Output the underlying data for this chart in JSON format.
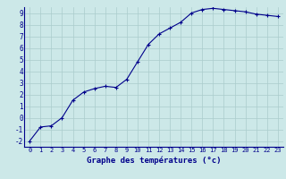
{
  "x": [
    0,
    1,
    2,
    3,
    4,
    5,
    6,
    7,
    8,
    9,
    10,
    11,
    12,
    13,
    14,
    15,
    16,
    17,
    18,
    19,
    20,
    21,
    22,
    23
  ],
  "y": [
    -2.0,
    -0.8,
    -0.7,
    0.0,
    1.5,
    2.2,
    2.5,
    2.7,
    2.6,
    3.3,
    4.8,
    6.3,
    7.2,
    7.7,
    8.2,
    9.0,
    9.3,
    9.4,
    9.3,
    9.2,
    9.1,
    8.9,
    8.8,
    8.7
  ],
  "line_color": "#00008B",
  "marker_color": "#00008B",
  "bg_color": "#cce8e8",
  "grid_color": "#aacccc",
  "axis_label_color": "#00008B",
  "tick_label_color": "#00008B",
  "xlabel": "Graphe des températures (°c)",
  "xlim": [
    -0.5,
    23.5
  ],
  "ylim": [
    -2.5,
    9.5
  ],
  "yticks": [
    -2,
    -1,
    0,
    1,
    2,
    3,
    4,
    5,
    6,
    7,
    8,
    9
  ],
  "xticks": [
    0,
    1,
    2,
    3,
    4,
    5,
    6,
    7,
    8,
    9,
    10,
    11,
    12,
    13,
    14,
    15,
    16,
    17,
    18,
    19,
    20,
    21,
    22,
    23
  ]
}
